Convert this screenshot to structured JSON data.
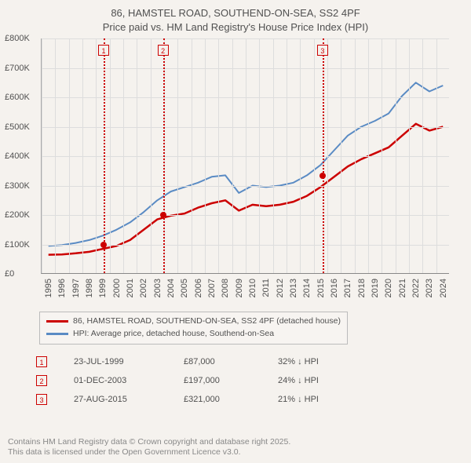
{
  "title": {
    "line1": "86, HAMSTEL ROAD, SOUTHEND-ON-SEA, SS2 4PF",
    "line2": "Price paid vs. HM Land Registry's House Price Index (HPI)"
  },
  "chart": {
    "type": "line",
    "background_color": "#f5f2ee",
    "grid_color": "#dddddd",
    "axis_color": "#888888",
    "text_color": "#505050",
    "ylim": [
      0,
      800000
    ],
    "ytick_step": 100000,
    "y_ticks": [
      "£0",
      "£100K",
      "£200K",
      "£300K",
      "£400K",
      "£500K",
      "£600K",
      "£700K",
      "£800K"
    ],
    "x_years": [
      1995,
      1996,
      1997,
      1998,
      1999,
      2000,
      2001,
      2002,
      2003,
      2004,
      2005,
      2006,
      2007,
      2008,
      2009,
      2010,
      2011,
      2012,
      2013,
      2014,
      2015,
      2016,
      2017,
      2018,
      2019,
      2020,
      2021,
      2022,
      2023,
      2024
    ],
    "series": [
      {
        "name": "price_paid",
        "label": "86, HAMSTEL ROAD, SOUTHEND-ON-SEA, SS2 4PF (detached house)",
        "color": "#cc0000",
        "line_width": 2.5,
        "points_yearly": [
          65000,
          66000,
          70000,
          75000,
          85000,
          95000,
          115000,
          150000,
          185000,
          198000,
          205000,
          225000,
          240000,
          250000,
          215000,
          235000,
          230000,
          235000,
          245000,
          265000,
          295000,
          330000,
          365000,
          390000,
          410000,
          430000,
          470000,
          510000,
          487000,
          500000
        ]
      },
      {
        "name": "hpi",
        "label": "HPI: Average price, detached house, Southend-on-Sea",
        "color": "#5a8bc4",
        "line_width": 2,
        "points_yearly": [
          95000,
          98000,
          105000,
          115000,
          130000,
          150000,
          175000,
          210000,
          250000,
          280000,
          295000,
          310000,
          330000,
          335000,
          275000,
          300000,
          295000,
          300000,
          310000,
          335000,
          370000,
          420000,
          470000,
          500000,
          520000,
          545000,
          605000,
          650000,
          620000,
          640000
        ]
      }
    ],
    "events": [
      {
        "n": "1",
        "year_frac": 1999.56,
        "date": "23-JUL-1999",
        "price": "£87,000",
        "pct": "32% ↓ HPI"
      },
      {
        "n": "2",
        "year_frac": 2003.92,
        "date": "01-DEC-2003",
        "price": "£197,000",
        "pct": "24% ↓ HPI"
      },
      {
        "n": "3",
        "year_frac": 2015.65,
        "date": "27-AUG-2015",
        "price": "£321,000",
        "pct": "21% ↓ HPI"
      }
    ],
    "event_line_color": "#cc0000",
    "dot_color": "#cc0000"
  },
  "legend": {
    "rows": [
      {
        "color": "#cc0000",
        "label_key": "chart.series.0.label"
      },
      {
        "color": "#5a8bc4",
        "label_key": "chart.series.1.label"
      }
    ]
  },
  "attribution": {
    "line1": "Contains HM Land Registry data © Crown copyright and database right 2025.",
    "line2": "This data is licensed under the Open Government Licence v3.0."
  }
}
